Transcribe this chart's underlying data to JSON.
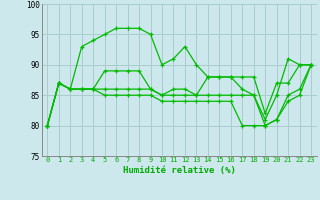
{
  "title": "",
  "xlabel": "Humidité relative (%)",
  "ylabel": "",
  "background_color": "#cce8ec",
  "grid_color": "#aacccc",
  "line_color": "#00bb00",
  "marker": "+",
  "ylim": [
    75,
    100
  ],
  "xlim": [
    -0.5,
    23.5
  ],
  "yticks": [
    75,
    80,
    85,
    90,
    95,
    100
  ],
  "xticks": [
    0,
    1,
    2,
    3,
    4,
    5,
    6,
    7,
    8,
    9,
    10,
    11,
    12,
    13,
    14,
    15,
    16,
    17,
    18,
    19,
    20,
    21,
    22,
    23
  ],
  "series": [
    [
      80,
      87,
      86,
      93,
      94,
      95,
      96,
      96,
      96,
      95,
      90,
      91,
      93,
      90,
      88,
      88,
      88,
      86,
      85,
      81,
      85,
      91,
      90,
      90
    ],
    [
      80,
      87,
      86,
      86,
      86,
      89,
      89,
      89,
      89,
      86,
      85,
      86,
      86,
      85,
      88,
      88,
      88,
      88,
      88,
      82,
      87,
      87,
      90,
      90
    ],
    [
      80,
      87,
      86,
      86,
      86,
      86,
      86,
      86,
      86,
      86,
      85,
      85,
      85,
      85,
      85,
      85,
      85,
      85,
      85,
      80,
      81,
      85,
      86,
      90
    ],
    [
      80,
      87,
      86,
      86,
      86,
      85,
      85,
      85,
      85,
      85,
      84,
      84,
      84,
      84,
      84,
      84,
      84,
      80,
      80,
      80,
      81,
      84,
      85,
      90
    ]
  ]
}
